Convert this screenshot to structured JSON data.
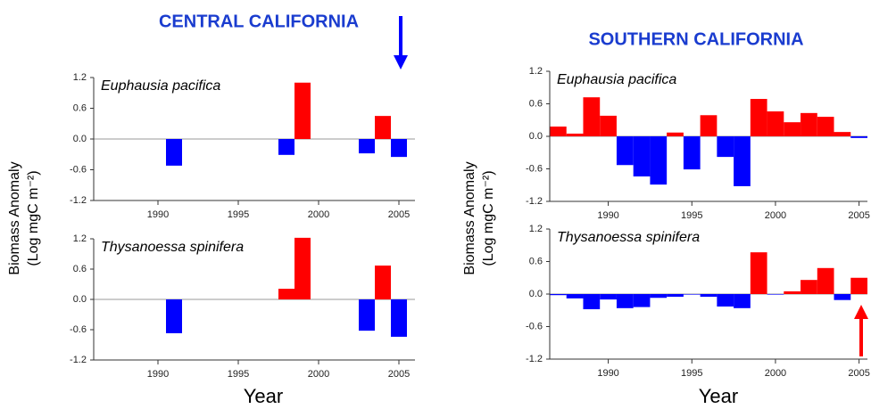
{
  "chart_data": [
    {
      "type": "bar",
      "title": "CENTRAL CALIFORNIA",
      "annotation": "Euphausia pacifica",
      "ylabel": [
        "Biomass Anomaly",
        "(Log mgC m⁻²)"
      ],
      "x": [
        1991,
        1998,
        1999,
        2003,
        2004,
        2005
      ],
      "values": [
        -0.52,
        -0.31,
        1.1,
        -0.28,
        0.45,
        -0.35
      ],
      "pos_color": "#ff0000",
      "neg_color": "#0000ff",
      "xlim": [
        1986,
        2006
      ],
      "xticks": [
        1990,
        1995,
        2000,
        2005
      ],
      "ylim": [
        -1.2,
        1.2
      ],
      "yticks": [
        -1.2,
        -0.6,
        {
          "value": 0,
          "label": "0.0"
        },
        0.6,
        1.2
      ]
    },
    {
      "type": "bar",
      "annotation": "Thysanoessa spinifera",
      "xlabel": "Year",
      "x": [
        1991,
        1998,
        1999,
        2003,
        2004,
        2005
      ],
      "values": [
        -0.67,
        0.21,
        1.22,
        -0.62,
        0.67,
        -0.74
      ],
      "pos_color": "#ff0000",
      "neg_color": "#0000ff",
      "xlim": [
        1986,
        2006
      ],
      "xticks": [
        1990,
        1995,
        2000,
        2005
      ],
      "ylim": [
        -1.2,
        1.2
      ],
      "yticks": [
        -1.2,
        -0.6,
        {
          "value": 0,
          "label": "0.0"
        },
        0.6,
        1.2
      ]
    },
    {
      "type": "bar",
      "title": "SOUTHERN CALIFORNIA",
      "annotation": "Euphausia pacifica",
      "ylabel": [
        "Biomass Anomaly",
        "(Log mgC m⁻²)"
      ],
      "x": [
        1987,
        1988,
        1989,
        1990,
        1991,
        1992,
        1993,
        1994,
        1995,
        1996,
        1997,
        1998,
        1999,
        2000,
        2001,
        2002,
        2003,
        2004,
        2005
      ],
      "values": [
        0.18,
        0.05,
        0.72,
        0.38,
        -0.53,
        -0.74,
        -0.89,
        0.07,
        -0.61,
        0.39,
        -0.38,
        -0.92,
        0.69,
        0.46,
        0.26,
        0.43,
        0.36,
        0.08,
        -0.03
      ],
      "pos_color": "#ff0000",
      "neg_color": "#0000ff",
      "xlim": [
        1986.5,
        2005.5
      ],
      "xticks": [
        1990,
        1995,
        2000,
        2005
      ],
      "ylim": [
        -1.2,
        1.2
      ],
      "yticks": [
        -1.2,
        -0.6,
        {
          "value": 0,
          "label": "0.0"
        },
        0.6,
        1.2
      ]
    },
    {
      "type": "bar",
      "annotation": "Thysanoessa spinifera",
      "xlabel": "Year",
      "x": [
        1987,
        1988,
        1989,
        1990,
        1991,
        1992,
        1993,
        1994,
        1995,
        1996,
        1997,
        1998,
        1999,
        2000,
        2001,
        2002,
        2003,
        2004,
        2005
      ],
      "values": [
        -0.02,
        -0.08,
        -0.28,
        -0.1,
        -0.26,
        -0.24,
        -0.07,
        -0.05,
        -0.01,
        -0.05,
        -0.23,
        -0.26,
        0.77,
        -0.01,
        0.05,
        0.26,
        0.48,
        -0.11,
        0.3
      ],
      "pos_color": "#ff0000",
      "neg_color": "#0000ff",
      "xlim": [
        1986.5,
        2005.5
      ],
      "xticks": [
        1990,
        1995,
        2000,
        2005
      ],
      "ylim": [
        -1.2,
        1.2
      ],
      "yticks": [
        -1.2,
        -0.6,
        {
          "value": 0,
          "label": "0.0"
        },
        0.6,
        1.2
      ]
    }
  ]
}
